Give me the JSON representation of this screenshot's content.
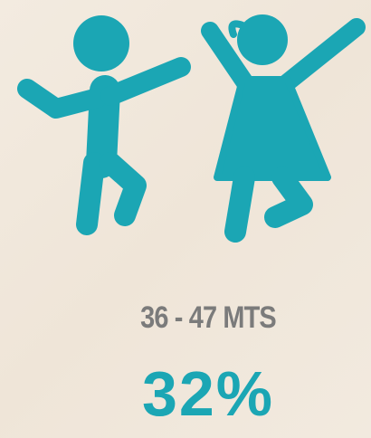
{
  "range_label": "36 - 47 MTS",
  "percentage": "32%"
}
